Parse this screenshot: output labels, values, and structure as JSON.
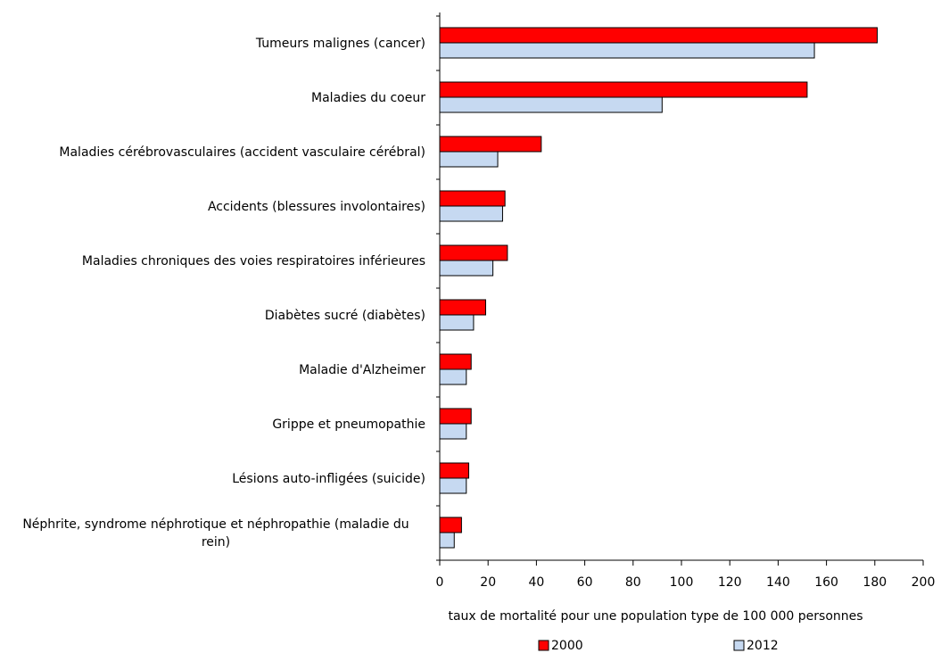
{
  "chart_data": {
    "type": "bar",
    "orientation": "horizontal",
    "x_label": "taux de mortalité pour une population type de 100 000 personnes",
    "categories": [
      "Tumeurs malignes (cancer)",
      "Maladies du coeur",
      "Maladies cérébrovasculaires (accident vasculaire cérébral)",
      "Accidents (blessures involontaires)",
      "Maladies chroniques des voies respiratoires inférieures",
      "Diabètes sucré (diabètes)",
      "Maladie d'Alzheimer",
      "Grippe et pneumopathie",
      "Lésions auto-infligées (suicide)",
      "Néphrite, syndrome néphrotique et néphropathie (maladie du rein)"
    ],
    "series": [
      {
        "name": "2000",
        "color": "#ff0000",
        "values": [
          181,
          152,
          42,
          27,
          28,
          19,
          13,
          13,
          12,
          9
        ]
      },
      {
        "name": "2012",
        "color": "#c6d9f1",
        "values": [
          155,
          92,
          24,
          26,
          22,
          14,
          11,
          11,
          11,
          6
        ]
      }
    ],
    "xlim": [
      0,
      200
    ],
    "xticks": [
      0,
      20,
      40,
      60,
      80,
      100,
      120,
      140,
      160,
      180,
      200
    ],
    "grid": false
  }
}
